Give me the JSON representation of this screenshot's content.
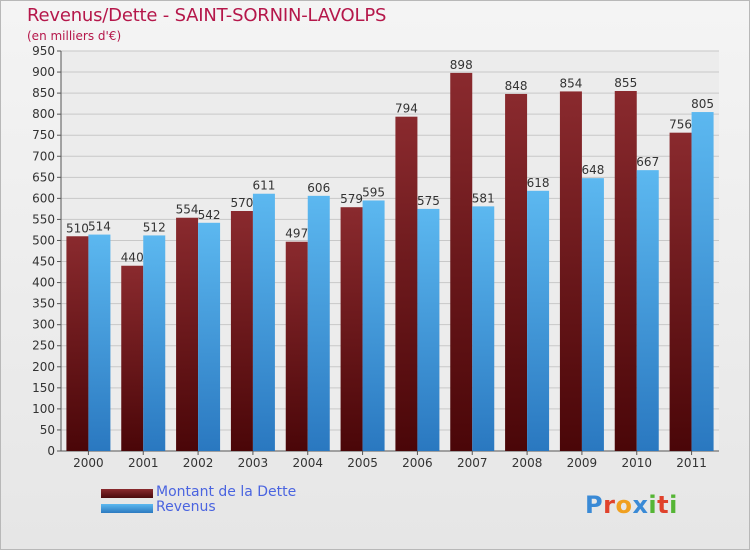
{
  "title": "Revenus/Dette - SAINT-SORNIN-LAVOLPS",
  "subtitle": "(en milliers d'€)",
  "colors": {
    "dette": "#7a1a1e",
    "revenus": "#4aa8e8",
    "title": "#b5174a",
    "legend_text": "#4a64e0"
  },
  "logo": {
    "text": "Proxiti",
    "letters": [
      {
        "ch": "P",
        "color": "#3a8ad6"
      },
      {
        "ch": "r",
        "color": "#e0422c"
      },
      {
        "ch": "o",
        "color": "#f0a020"
      },
      {
        "ch": "x",
        "color": "#3a8ad6"
      },
      {
        "ch": "i",
        "color": "#55b535"
      },
      {
        "ch": "t",
        "color": "#e0422c"
      },
      {
        "ch": "i",
        "color": "#55b535"
      }
    ]
  },
  "legend": [
    {
      "label": "Montant de la Dette",
      "series": "dette"
    },
    {
      "label": "Revenus",
      "series": "revenus"
    }
  ],
  "chart_data": {
    "type": "bar",
    "title": "Revenus/Dette - SAINT-SORNIN-LAVOLPS",
    "subtitle": "(en milliers d'€)",
    "categories": [
      "2000",
      "2001",
      "2002",
      "2003",
      "2004",
      "2005",
      "2006",
      "2007",
      "2008",
      "2009",
      "2010",
      "2011"
    ],
    "series": [
      {
        "name": "Montant de la Dette",
        "key": "dette",
        "values": [
          510,
          440,
          554,
          570,
          497,
          579,
          794,
          898,
          848,
          854,
          855,
          756
        ]
      },
      {
        "name": "Revenus",
        "key": "revenus",
        "values": [
          514,
          512,
          542,
          611,
          606,
          595,
          575,
          581,
          618,
          648,
          667,
          805
        ]
      }
    ],
    "ylim": [
      0,
      950
    ],
    "yticks": [
      0,
      50,
      100,
      150,
      200,
      250,
      300,
      350,
      400,
      450,
      500,
      550,
      600,
      650,
      700,
      750,
      800,
      850,
      900,
      950
    ],
    "grid": true,
    "legend_position": "bottom-left"
  }
}
